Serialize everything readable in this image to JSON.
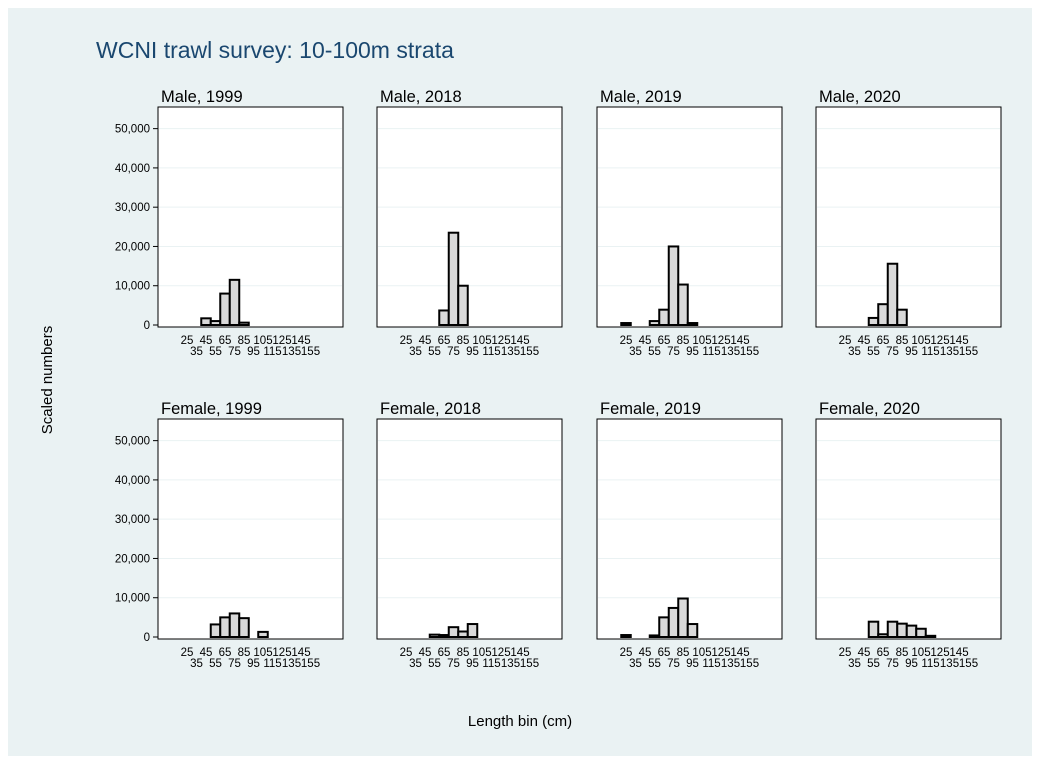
{
  "chart_data": {
    "type": "bar",
    "title": "WCNI trawl survey: 10-100m strata",
    "xlabel": "Length bin (cm)",
    "ylabel": "Scaled numbers",
    "ylim": [
      0,
      55000
    ],
    "y_ticks": [
      0,
      10000,
      20000,
      30000,
      40000,
      50000
    ],
    "y_tick_labels": [
      "0",
      "10,000",
      "20,000",
      "30,000",
      "40,000",
      "50,000"
    ],
    "grid": true,
    "categories": [
      "25",
      "35",
      "45",
      "55",
      "65",
      "75",
      "85",
      "95",
      "105",
      "115",
      "125",
      "135",
      "145",
      "155"
    ],
    "x_tick_row1": [
      "25",
      "45",
      "65",
      "85",
      "105",
      "125",
      "145"
    ],
    "x_tick_row2": [
      "35",
      "55",
      "75",
      "95",
      "115",
      "135",
      "155"
    ],
    "panels": [
      {
        "title": "Male, 1999",
        "values": [
          0,
          0,
          1700,
          1000,
          8000,
          11500,
          600,
          0,
          0,
          0,
          0,
          0,
          0,
          0
        ]
      },
      {
        "title": "Male, 2018",
        "values": [
          0,
          0,
          0,
          0,
          3700,
          23500,
          10000,
          0,
          0,
          0,
          0,
          0,
          0,
          0
        ]
      },
      {
        "title": "Male, 2019",
        "values": [
          500,
          0,
          0,
          1000,
          3900,
          20000,
          10300,
          500,
          0,
          0,
          0,
          0,
          0,
          0
        ]
      },
      {
        "title": "Male, 2020",
        "values": [
          0,
          0,
          0,
          1800,
          5300,
          15600,
          3900,
          0,
          0,
          0,
          0,
          0,
          0,
          0
        ]
      },
      {
        "title": "Female, 1999",
        "values": [
          0,
          0,
          0,
          3200,
          5000,
          6000,
          4800,
          0,
          1300,
          0,
          0,
          0,
          0,
          0
        ]
      },
      {
        "title": "Female, 2018",
        "values": [
          0,
          0,
          0,
          600,
          500,
          2500,
          1400,
          3300,
          0,
          0,
          0,
          0,
          0,
          0
        ]
      },
      {
        "title": "Female, 2019",
        "values": [
          500,
          0,
          0,
          400,
          5000,
          7400,
          9800,
          3300,
          0,
          0,
          0,
          0,
          0,
          0
        ]
      },
      {
        "title": "Female, 2020",
        "values": [
          0,
          0,
          0,
          3900,
          700,
          3900,
          3400,
          2900,
          2100,
          300,
          0,
          0,
          0,
          0
        ]
      }
    ]
  }
}
